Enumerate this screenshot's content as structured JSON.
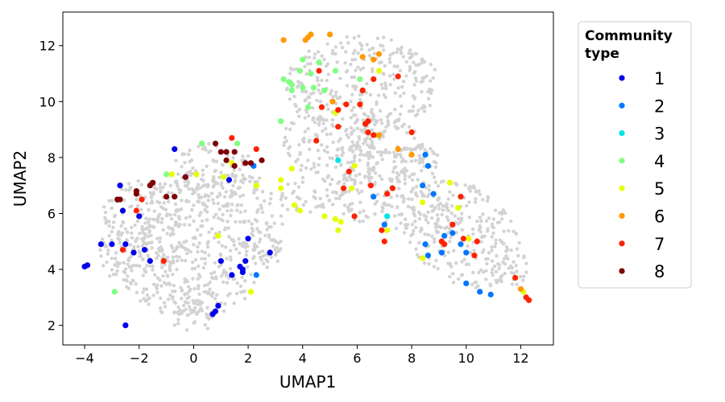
{
  "chart_data": {
    "type": "scatter",
    "xlabel": "UMAP1",
    "ylabel": "UMAP2",
    "xlim": [
      -4.8,
      13.2
    ],
    "ylim": [
      1.3,
      13.2
    ],
    "xticks": [
      -4,
      -2,
      0,
      2,
      4,
      6,
      8,
      10,
      12
    ],
    "yticks": [
      2,
      4,
      6,
      8,
      10,
      12
    ],
    "grid": false,
    "legend": {
      "title_lines": [
        "Community",
        "type"
      ],
      "placement": "outside-right-top",
      "entries": [
        "1",
        "2",
        "3",
        "4",
        "5",
        "6",
        "7",
        "8"
      ]
    },
    "background_color": "#d3d3d3",
    "background_regions": [
      {
        "shape": "ellipse",
        "cx": 0.2,
        "cy": 5.0,
        "rx": 3.2,
        "ry": 2.6,
        "rotate": 20
      },
      {
        "shape": "ellipse",
        "cx": -2.0,
        "cy": 5.2,
        "rx": 1.6,
        "ry": 2.0,
        "rotate": 0
      },
      {
        "shape": "ellipse",
        "cx": 0.8,
        "cy": 7.3,
        "rx": 1.8,
        "ry": 1.2,
        "rotate": 0
      },
      {
        "shape": "ellipse",
        "cx": 0.0,
        "cy": 2.6,
        "rx": 1.2,
        "ry": 0.8,
        "rotate": 0
      },
      {
        "shape": "ellipse",
        "cx": 2.3,
        "cy": 4.8,
        "rx": 0.9,
        "ry": 0.6,
        "rotate": 0
      },
      {
        "shape": "ellipse",
        "cx": 6.2,
        "cy": 10.6,
        "rx": 2.8,
        "ry": 1.8,
        "rotate": 0
      },
      {
        "shape": "ellipse",
        "cx": 5.2,
        "cy": 8.6,
        "rx": 1.9,
        "ry": 1.6,
        "rotate": 0
      },
      {
        "shape": "ellipse",
        "cx": 7.0,
        "cy": 8.2,
        "rx": 1.5,
        "ry": 1.2,
        "rotate": 0
      },
      {
        "shape": "ellipse",
        "cx": 7.3,
        "cy": 6.3,
        "rx": 2.6,
        "ry": 1.0,
        "rotate": -15
      },
      {
        "shape": "ellipse",
        "cx": 9.8,
        "cy": 5.3,
        "rx": 2.4,
        "ry": 1.7,
        "rotate": -35
      },
      {
        "shape": "ellipse",
        "cx": 11.5,
        "cy": 4.0,
        "rx": 0.9,
        "ry": 0.7,
        "rotate": 0
      },
      {
        "shape": "ellipse",
        "cx": 4.0,
        "cy": 6.6,
        "rx": 0.9,
        "ry": 0.7,
        "rotate": 0
      },
      {
        "shape": "ellipse",
        "cx": 8.2,
        "cy": 7.6,
        "rx": 0.9,
        "ry": 0.9,
        "rotate": 0
      }
    ],
    "series": [
      {
        "name": "1",
        "color": "#0000ee",
        "points": [
          [
            -4.0,
            4.1
          ],
          [
            -3.9,
            4.15
          ],
          [
            -3.4,
            4.9
          ],
          [
            -3.0,
            4.9
          ],
          [
            -2.5,
            4.9
          ],
          [
            -2.2,
            4.6
          ],
          [
            -1.8,
            4.7
          ],
          [
            -1.6,
            4.3
          ],
          [
            -2.6,
            6.1
          ],
          [
            -2.0,
            5.9
          ],
          [
            -0.7,
            8.3
          ],
          [
            -0.3,
            7.3
          ],
          [
            1.3,
            7.2
          ],
          [
            1.4,
            3.8
          ],
          [
            1.0,
            4.3
          ],
          [
            1.7,
            4.1
          ],
          [
            1.8,
            4.0
          ],
          [
            1.8,
            3.9
          ],
          [
            1.9,
            4.3
          ],
          [
            2.0,
            5.1
          ],
          [
            2.8,
            4.6
          ],
          [
            0.9,
            2.7
          ],
          [
            0.8,
            2.5
          ],
          [
            0.7,
            2.4
          ],
          [
            -2.5,
            2.0
          ],
          [
            -2.7,
            7.0
          ]
        ]
      },
      {
        "name": "2",
        "color": "#0077ff",
        "points": [
          [
            2.2,
            7.7
          ],
          [
            2.3,
            3.8
          ],
          [
            6.6,
            6.6
          ],
          [
            7.0,
            5.6
          ],
          [
            8.4,
            7.0
          ],
          [
            8.5,
            8.1
          ],
          [
            8.6,
            7.7
          ],
          [
            8.8,
            6.7
          ],
          [
            8.5,
            4.9
          ],
          [
            8.6,
            4.5
          ],
          [
            9.1,
            4.6
          ],
          [
            9.2,
            5.2
          ],
          [
            9.8,
            4.9
          ],
          [
            10.0,
            4.6
          ],
          [
            10.0,
            3.5
          ],
          [
            10.5,
            3.2
          ],
          [
            10.9,
            3.1
          ],
          [
            9.5,
            5.3
          ]
        ]
      },
      {
        "name": "3",
        "color": "#00e5e5",
        "points": [
          [
            5.3,
            7.9
          ],
          [
            7.1,
            5.9
          ]
        ]
      },
      {
        "name": "4",
        "color": "#80ff80",
        "points": [
          [
            3.2,
            9.3
          ],
          [
            3.3,
            10.8
          ],
          [
            3.5,
            10.7
          ],
          [
            3.6,
            10.4
          ],
          [
            4.0,
            11.5
          ],
          [
            4.0,
            10.5
          ],
          [
            3.9,
            11.1
          ],
          [
            4.3,
            11.0
          ],
          [
            4.6,
            11.4
          ],
          [
            4.4,
            10.5
          ],
          [
            4.8,
            10.4
          ],
          [
            5.2,
            11.1
          ],
          [
            6.1,
            10.8
          ],
          [
            6.7,
            8.8
          ],
          [
            1.6,
            8.5
          ],
          [
            -1.0,
            7.4
          ],
          [
            0.3,
            8.5
          ],
          [
            -2.9,
            3.2
          ],
          [
            4.2,
            9.8
          ],
          [
            3.6,
            10.6
          ]
        ]
      },
      {
        "name": "5",
        "color": "#e5ff00",
        "points": [
          [
            -0.8,
            7.4
          ],
          [
            0.1,
            7.4
          ],
          [
            0.9,
            5.2
          ],
          [
            2.3,
            7.0
          ],
          [
            2.1,
            3.2
          ],
          [
            3.2,
            7.2
          ],
          [
            3.2,
            6.9
          ],
          [
            3.7,
            6.3
          ],
          [
            3.9,
            6.1
          ],
          [
            3.6,
            7.6
          ],
          [
            4.8,
            5.9
          ],
          [
            5.2,
            5.8
          ],
          [
            5.4,
            5.7
          ],
          [
            5.3,
            5.4
          ],
          [
            5.9,
            7.7
          ],
          [
            5.8,
            6.9
          ],
          [
            6.8,
            11.1
          ],
          [
            6.8,
            8.8
          ],
          [
            7.1,
            5.4
          ],
          [
            8.4,
            4.4
          ],
          [
            8.4,
            6.4
          ],
          [
            9.4,
            7.1
          ],
          [
            9.7,
            6.2
          ],
          [
            10.1,
            5.1
          ],
          [
            12.1,
            3.2
          ],
          [
            1.4,
            7.8
          ],
          [
            1.1,
            7.3
          ],
          [
            5.2,
            9.6
          ]
        ]
      },
      {
        "name": "6",
        "color": "#ff9900",
        "points": [
          [
            3.3,
            12.2
          ],
          [
            4.1,
            12.2
          ],
          [
            4.2,
            12.3
          ],
          [
            4.3,
            12.4
          ],
          [
            5.0,
            12.4
          ],
          [
            6.2,
            11.6
          ],
          [
            6.8,
            11.7
          ],
          [
            6.6,
            11.5
          ],
          [
            7.5,
            8.3
          ],
          [
            8.0,
            8.1
          ],
          [
            5.1,
            10.0
          ],
          [
            6.8,
            8.8
          ],
          [
            12.0,
            3.3
          ]
        ]
      },
      {
        "name": "7",
        "color": "#ff2200",
        "points": [
          [
            -2.6,
            4.7
          ],
          [
            -1.9,
            6.5
          ],
          [
            -2.1,
            6.1
          ],
          [
            -1.1,
            4.3
          ],
          [
            1.4,
            8.7
          ],
          [
            2.3,
            8.3
          ],
          [
            4.6,
            11.1
          ],
          [
            4.7,
            9.8
          ],
          [
            5.3,
            9.1
          ],
          [
            5.3,
            9.7
          ],
          [
            5.6,
            9.9
          ],
          [
            5.7,
            7.5
          ],
          [
            5.9,
            5.9
          ],
          [
            6.1,
            9.9
          ],
          [
            6.2,
            10.4
          ],
          [
            6.4,
            9.3
          ],
          [
            6.4,
            8.9
          ],
          [
            6.6,
            8.8
          ],
          [
            6.5,
            7.0
          ],
          [
            6.6,
            10.8
          ],
          [
            7.1,
            6.7
          ],
          [
            7.3,
            6.9
          ],
          [
            6.9,
            5.4
          ],
          [
            7.0,
            5.0
          ],
          [
            7.5,
            10.9
          ],
          [
            8.0,
            8.9
          ],
          [
            9.1,
            5.0
          ],
          [
            9.2,
            4.9
          ],
          [
            9.5,
            5.6
          ],
          [
            9.8,
            6.6
          ],
          [
            9.9,
            5.1
          ],
          [
            10.3,
            4.5
          ],
          [
            10.4,
            5.0
          ],
          [
            11.8,
            3.7
          ],
          [
            12.2,
            3.0
          ],
          [
            12.3,
            2.9
          ],
          [
            5.5,
            6.9
          ],
          [
            4.5,
            8.6
          ],
          [
            6.3,
            9.2
          ]
        ]
      },
      {
        "name": "8",
        "color": "#800000",
        "points": [
          [
            -2.8,
            6.5
          ],
          [
            -2.7,
            6.5
          ],
          [
            -2.1,
            6.8
          ],
          [
            -2.1,
            6.7
          ],
          [
            -1.6,
            7.0
          ],
          [
            -1.5,
            7.1
          ],
          [
            -1.0,
            6.6
          ],
          [
            -0.7,
            6.6
          ],
          [
            -0.3,
            7.3
          ],
          [
            0.8,
            8.5
          ],
          [
            1.0,
            8.2
          ],
          [
            1.2,
            8.2
          ],
          [
            1.2,
            7.9
          ],
          [
            1.5,
            7.7
          ],
          [
            1.5,
            8.2
          ],
          [
            1.9,
            7.8
          ],
          [
            2.1,
            7.8
          ],
          [
            2.5,
            7.9
          ]
        ]
      }
    ]
  }
}
